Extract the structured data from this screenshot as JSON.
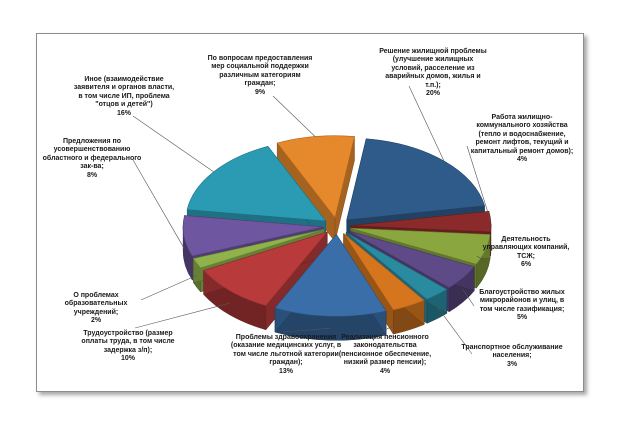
{
  "chart_data": {
    "type": "pie",
    "style": "3d-exploded",
    "slices": [
      {
        "label": "Решение жилищной проблемы (улучшение жилищных условий, расселение из аварийных домов, жилья и т.п.);",
        "pct_label": "20%",
        "value": 20,
        "color": "#2f5b8a"
      },
      {
        "label": "Работа жилищно-коммунального хозяйства (тепло и водоснабжение, ремонт лифтов, текущий и капитальный ремонт домов);",
        "pct_label": "4%",
        "value": 4,
        "color": "#8b2a2a"
      },
      {
        "label": "Деятельность управляющих компаний, ТСЖ;",
        "pct_label": "6%",
        "value": 6,
        "color": "#8aa63e"
      },
      {
        "label": "Благоустройство жилых микрорайонов и улиц, в том числе газификация;",
        "pct_label": "5%",
        "value": 5,
        "color": "#5e4a86"
      },
      {
        "label": "Транспортное обслуживание населения;",
        "pct_label": "3%",
        "value": 3,
        "color": "#2a8aa0"
      },
      {
        "label": "Реализация пенсионного законодательства (пенсионное обеспечение, низкий размер пенсии);",
        "pct_label": "4%",
        "value": 4,
        "color": "#d5761f"
      },
      {
        "label": "Проблемы здравоохранения (оказание медицинских услуг, в том числе льготной категории граждан);",
        "pct_label": "13%",
        "value": 13,
        "color": "#3a6ea8"
      },
      {
        "label": "Трудоустройство (размер оплаты труда, в том числе задержка з/п);",
        "pct_label": "10%",
        "value": 10,
        "color": "#b83a3a"
      },
      {
        "label": "О проблемах образовательных учреждений;",
        "pct_label": "2%",
        "value": 2,
        "color": "#8fb24a"
      },
      {
        "label": "Предложения по усовершенствованию областного и федерального зак-ва;",
        "pct_label": "8%",
        "value": 8,
        "color": "#6f56a0"
      },
      {
        "label": "Иное (взаимодействие заявителя и органов власти, в том числе ИП, проблема \"отцов и детей\")",
        "pct_label": "16%",
        "value": 16,
        "color": "#2b9bb4"
      },
      {
        "label": "По вопросам предоставления мер социальной поддержки различным категориям граждан;",
        "pct_label": "9%",
        "value": 9,
        "color": "#e6892c"
      }
    ]
  }
}
